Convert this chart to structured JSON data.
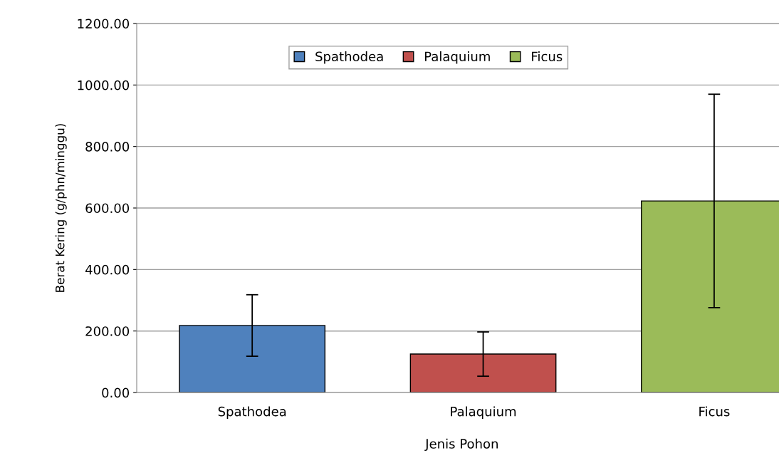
{
  "chart_data": {
    "type": "bar",
    "xlabel": "Jenis Pohon",
    "ylabel": "Berat Kering (g/phn/minggu)",
    "categories": [
      "Spathodea",
      "Palaquium",
      "Ficus"
    ],
    "series": [
      {
        "name": "Spathodea",
        "color": "#4f81bd",
        "values": [
          218,
          null,
          null
        ],
        "errors": [
          100,
          null,
          null
        ]
      },
      {
        "name": "Palaquium",
        "color": "#c0504d",
        "values": [
          null,
          125,
          null
        ],
        "errors": [
          null,
          72,
          null
        ]
      },
      {
        "name": "Ficus",
        "color": "#9bbb59",
        "values": [
          null,
          null,
          623
        ],
        "errors": [
          null,
          null,
          347
        ]
      }
    ],
    "ylim": [
      0,
      1200
    ],
    "yticks": [
      {
        "value": 0,
        "label": "0.00"
      },
      {
        "value": 200,
        "label": "200.00"
      },
      {
        "value": 400,
        "label": "400.00"
      },
      {
        "value": 600,
        "label": "600.00"
      },
      {
        "value": 800,
        "label": "800.00"
      },
      {
        "value": 1000,
        "label": "1000.00"
      },
      {
        "value": 1200,
        "label": "1200.00"
      }
    ],
    "grid": "y",
    "legend": "top"
  }
}
